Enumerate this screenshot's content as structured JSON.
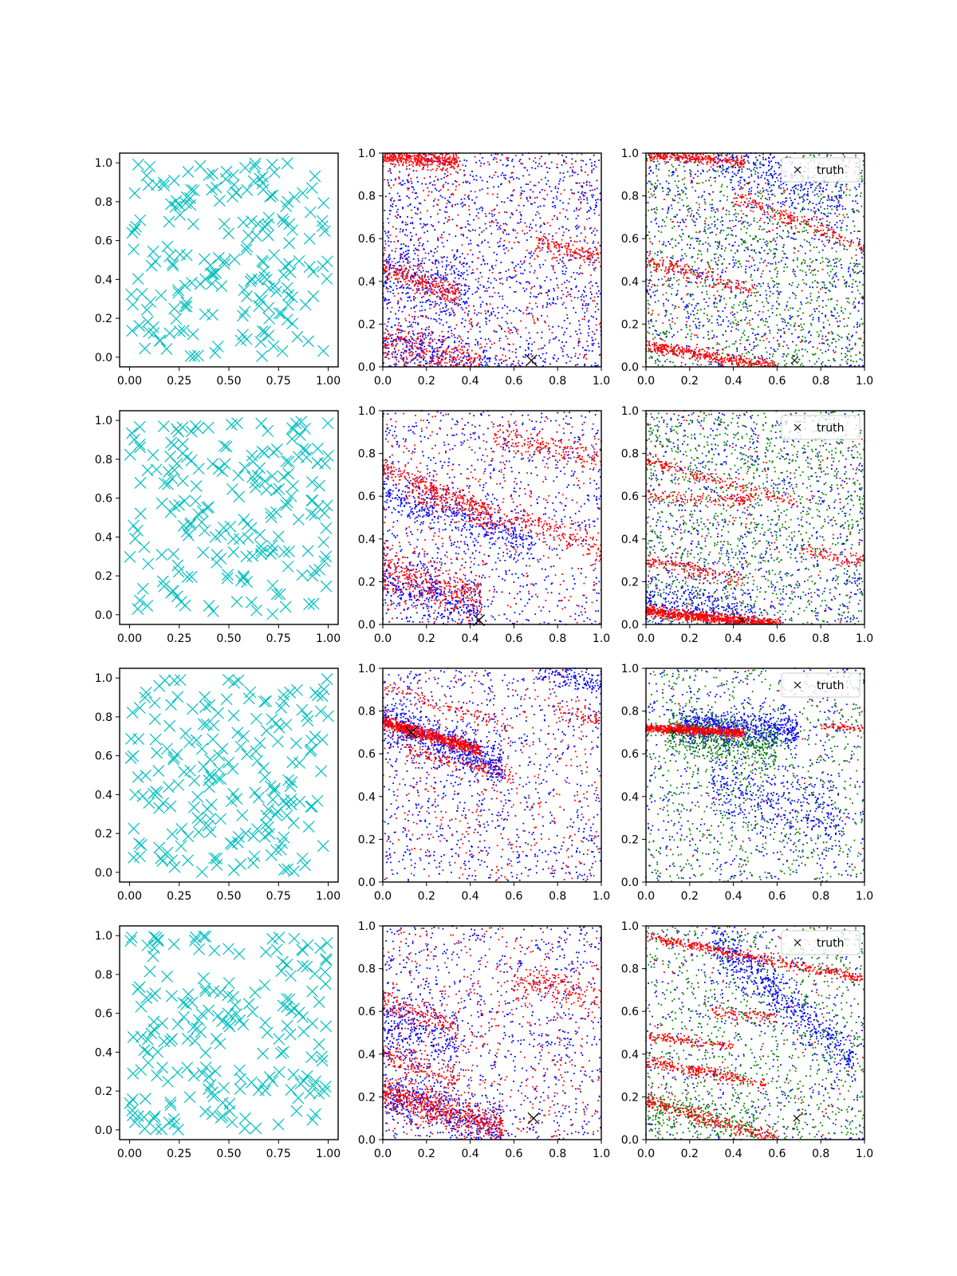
{
  "chart_data": {
    "type": "scatter",
    "layout": {
      "rows": 4,
      "cols": 3
    },
    "legend": {
      "label": "truth",
      "placement": "top-right",
      "panels": "column 3"
    },
    "colors": {
      "uniform_samples": "#00bfbf",
      "series_red": "#ff0000",
      "series_blue": "#0000ff",
      "series_green": "#008000",
      "truth": "#000000"
    },
    "column_axes": [
      {
        "xlim": [
          -0.05,
          1.05
        ],
        "ylim": [
          -0.05,
          1.05
        ],
        "xticks": [
          "0.00",
          "0.25",
          "0.50",
          "0.75",
          "1.00"
        ],
        "yticks": [
          "0.0",
          "0.2",
          "0.4",
          "0.6",
          "0.8",
          "1.0"
        ],
        "grid": false
      },
      {
        "xlim": [
          0,
          1
        ],
        "ylim": [
          0,
          1
        ],
        "xticks": [
          "0.0",
          "0.2",
          "0.4",
          "0.6",
          "0.8",
          "1.0"
        ],
        "yticks": [
          "0.0",
          "0.2",
          "0.4",
          "0.6",
          "0.8",
          "1.0"
        ],
        "grid": false
      },
      {
        "xlim": [
          0,
          1
        ],
        "ylim": [
          0,
          1
        ],
        "xticks": [
          "0.0",
          "0.2",
          "0.4",
          "0.6",
          "0.8",
          "1.0"
        ],
        "yticks": [
          "0.0",
          "0.2",
          "0.4",
          "0.6",
          "0.8",
          "1.0"
        ],
        "grid": false
      }
    ],
    "rows": [
      {
        "truth": [
          0.68,
          0.03
        ],
        "uniform_points": 200,
        "panel2_bands": [
          {
            "color": "red",
            "x0": 0,
            "y0": 0.99,
            "slope": -0.1,
            "x1": 0.35,
            "width": 0.02,
            "n": 420
          },
          {
            "color": "red",
            "x0": 0,
            "y0": 0.46,
            "slope": -0.35,
            "x1": 0.35,
            "width": 0.03,
            "n": 260
          },
          {
            "color": "red",
            "x0": 0,
            "y0": 0.12,
            "slope": -0.25,
            "x1": 0.45,
            "width": 0.04,
            "n": 300
          },
          {
            "color": "red",
            "x0": 0.7,
            "y0": 0.58,
            "slope": -0.25,
            "x1": 1.0,
            "width": 0.03,
            "n": 150
          },
          {
            "color": "blue",
            "x0": 0,
            "y0": 0.45,
            "slope": -0.3,
            "x1": 0.4,
            "width": 0.1,
            "n": 300
          },
          {
            "color": "blue",
            "x0": 0,
            "y0": 0.1,
            "slope": -0.2,
            "x1": 0.5,
            "width": 0.06,
            "n": 300
          }
        ],
        "panel2_background": {
          "blue": 1300,
          "red": 500
        },
        "panel3_bands": [
          {
            "color": "red",
            "x0": 0,
            "y0": 1.0,
            "slope": -0.1,
            "x1": 0.45,
            "width": 0.015,
            "n": 300
          },
          {
            "color": "red",
            "x0": 0,
            "y0": 0.1,
            "slope": -0.18,
            "x1": 0.6,
            "width": 0.015,
            "n": 420
          },
          {
            "color": "red",
            "x0": 0,
            "y0": 0.5,
            "slope": -0.3,
            "x1": 0.5,
            "width": 0.02,
            "n": 180
          },
          {
            "color": "red",
            "x0": 0.4,
            "y0": 0.8,
            "slope": -0.4,
            "x1": 1.0,
            "width": 0.02,
            "n": 200
          },
          {
            "color": "blue",
            "x0": 0.3,
            "y0": 1.0,
            "slope": -0.4,
            "x1": 0.9,
            "width": 0.06,
            "n": 260
          }
        ],
        "panel3_background": {
          "blue": 1000,
          "green": 1100,
          "red": 200
        }
      },
      {
        "truth": [
          0.44,
          0.02
        ],
        "uniform_points": 200,
        "panel2_bands": [
          {
            "color": "red",
            "x0": 0,
            "y0": 0.73,
            "slope": -0.4,
            "x1": 0.5,
            "width": 0.02,
            "n": 220
          },
          {
            "color": "red",
            "x0": 0,
            "y0": 0.25,
            "slope": -0.3,
            "x1": 0.45,
            "width": 0.06,
            "n": 380
          },
          {
            "color": "red",
            "x0": 0.5,
            "y0": 0.88,
            "slope": -0.2,
            "x1": 1.0,
            "width": 0.03,
            "n": 180
          },
          {
            "color": "red",
            "x0": 0.1,
            "y0": 0.62,
            "slope": -0.3,
            "x1": 0.6,
            "width": 0.03,
            "n": 180
          },
          {
            "color": "red",
            "x0": 0.6,
            "y0": 0.5,
            "slope": -0.35,
            "x1": 1.0,
            "width": 0.03,
            "n": 150
          },
          {
            "color": "blue",
            "x0": 0,
            "y0": 0.62,
            "slope": -0.35,
            "x1": 0.7,
            "width": 0.05,
            "n": 400
          },
          {
            "color": "blue",
            "x0": 0,
            "y0": 0.2,
            "slope": -0.3,
            "x1": 0.45,
            "width": 0.07,
            "n": 350
          }
        ],
        "panel2_background": {
          "blue": 900,
          "red": 400
        },
        "panel3_bands": [
          {
            "color": "red",
            "x0": 0,
            "y0": 0.06,
            "slope": -0.1,
            "x1": 0.62,
            "width": 0.012,
            "n": 800
          },
          {
            "color": "red",
            "x0": 0,
            "y0": 0.77,
            "slope": -0.3,
            "x1": 0.7,
            "width": 0.015,
            "n": 180
          },
          {
            "color": "red",
            "x0": 0,
            "y0": 0.6,
            "slope": -0.05,
            "x1": 0.5,
            "width": 0.015,
            "n": 120
          },
          {
            "color": "red",
            "x0": 0,
            "y0": 0.3,
            "slope": -0.2,
            "x1": 0.45,
            "width": 0.02,
            "n": 150
          },
          {
            "color": "red",
            "x0": 0.7,
            "y0": 0.35,
            "slope": -0.2,
            "x1": 1.0,
            "width": 0.015,
            "n": 80
          },
          {
            "color": "blue",
            "x0": 0,
            "y0": 0.1,
            "slope": -0.1,
            "x1": 0.5,
            "width": 0.06,
            "n": 300
          }
        ],
        "panel3_background": {
          "blue": 900,
          "green": 1200,
          "red": 150
        }
      },
      {
        "truth": [
          0.13,
          0.7
        ],
        "uniform_points": 200,
        "panel2_bands": [
          {
            "color": "red",
            "x0": 0,
            "y0": 0.75,
            "slope": -0.3,
            "x1": 0.45,
            "width": 0.015,
            "n": 700
          },
          {
            "color": "red",
            "x0": 0,
            "y0": 0.92,
            "slope": -0.35,
            "x1": 0.6,
            "width": 0.015,
            "n": 100
          },
          {
            "color": "red",
            "x0": 0.1,
            "y0": 0.62,
            "slope": -0.25,
            "x1": 0.6,
            "width": 0.02,
            "n": 150
          },
          {
            "color": "red",
            "x0": 0.8,
            "y0": 0.8,
            "slope": -0.2,
            "x1": 1.0,
            "width": 0.02,
            "n": 60
          },
          {
            "color": "blue",
            "x0": 0,
            "y0": 0.76,
            "slope": -0.4,
            "x1": 0.55,
            "width": 0.05,
            "n": 650
          },
          {
            "color": "blue",
            "x0": 0.7,
            "y0": 1.0,
            "slope": -0.25,
            "x1": 1.0,
            "width": 0.03,
            "n": 150
          }
        ],
        "panel2_background": {
          "blue": 900,
          "red": 400
        },
        "panel3_bands": [
          {
            "color": "red",
            "x0": 0,
            "y0": 0.72,
            "slope": -0.05,
            "x1": 0.45,
            "width": 0.01,
            "n": 650
          },
          {
            "color": "red",
            "x0": 0.8,
            "y0": 0.73,
            "slope": -0.05,
            "x1": 1.0,
            "width": 0.01,
            "n": 60
          },
          {
            "color": "blue",
            "x0": 0.15,
            "y0": 0.73,
            "slope": -0.05,
            "x1": 0.7,
            "width": 0.04,
            "n": 700
          },
          {
            "color": "green",
            "x0": 0.1,
            "y0": 0.7,
            "slope": -0.15,
            "x1": 0.6,
            "width": 0.06,
            "n": 500
          },
          {
            "color": "blue",
            "x0": 0.3,
            "y0": 0.45,
            "slope": -0.3,
            "x1": 0.9,
            "width": 0.08,
            "n": 350
          }
        ],
        "panel3_background": {
          "blue": 600,
          "green": 800,
          "red": 40
        }
      },
      {
        "truth": [
          0.69,
          0.1
        ],
        "uniform_points": 200,
        "panel2_bands": [
          {
            "color": "red",
            "x0": 0,
            "y0": 0.22,
            "slope": -0.3,
            "x1": 0.55,
            "width": 0.04,
            "n": 600
          },
          {
            "color": "red",
            "x0": 0,
            "y0": 0.65,
            "slope": -0.4,
            "x1": 0.35,
            "width": 0.03,
            "n": 150
          },
          {
            "color": "red",
            "x0": 0,
            "y0": 0.4,
            "slope": -0.35,
            "x1": 0.35,
            "width": 0.03,
            "n": 150
          },
          {
            "color": "red",
            "x0": 0.6,
            "y0": 0.75,
            "slope": -0.2,
            "x1": 1.0,
            "width": 0.04,
            "n": 180
          },
          {
            "color": "blue",
            "x0": 0,
            "y0": 0.22,
            "slope": -0.35,
            "x1": 0.55,
            "width": 0.06,
            "n": 450
          },
          {
            "color": "blue",
            "x0": 0,
            "y0": 0.55,
            "slope": -0.3,
            "x1": 0.35,
            "width": 0.08,
            "n": 300
          }
        ],
        "panel2_background": {
          "blue": 900,
          "red": 500
        },
        "panel3_bands": [
          {
            "color": "red",
            "x0": 0,
            "y0": 0.95,
            "slope": -0.2,
            "x1": 1.0,
            "width": 0.012,
            "n": 400
          },
          {
            "color": "red",
            "x0": 0,
            "y0": 0.37,
            "slope": -0.2,
            "x1": 0.55,
            "width": 0.015,
            "n": 250
          },
          {
            "color": "red",
            "x0": 0,
            "y0": 0.48,
            "slope": -0.1,
            "x1": 0.4,
            "width": 0.012,
            "n": 130
          },
          {
            "color": "red",
            "x0": 0,
            "y0": 0.18,
            "slope": -0.3,
            "x1": 0.6,
            "width": 0.02,
            "n": 300
          },
          {
            "color": "red",
            "x0": 0.3,
            "y0": 0.6,
            "slope": -0.1,
            "x1": 0.6,
            "width": 0.015,
            "n": 80
          },
          {
            "color": "blue",
            "x0": 0.3,
            "y0": 0.95,
            "slope": -0.9,
            "x1": 0.95,
            "width": 0.06,
            "n": 600
          },
          {
            "color": "green",
            "x0": 0,
            "y0": 0.15,
            "slope": -0.2,
            "x1": 0.5,
            "width": 0.05,
            "n": 250
          }
        ],
        "panel3_background": {
          "blue": 500,
          "green": 1000,
          "red": 100
        }
      }
    ]
  }
}
